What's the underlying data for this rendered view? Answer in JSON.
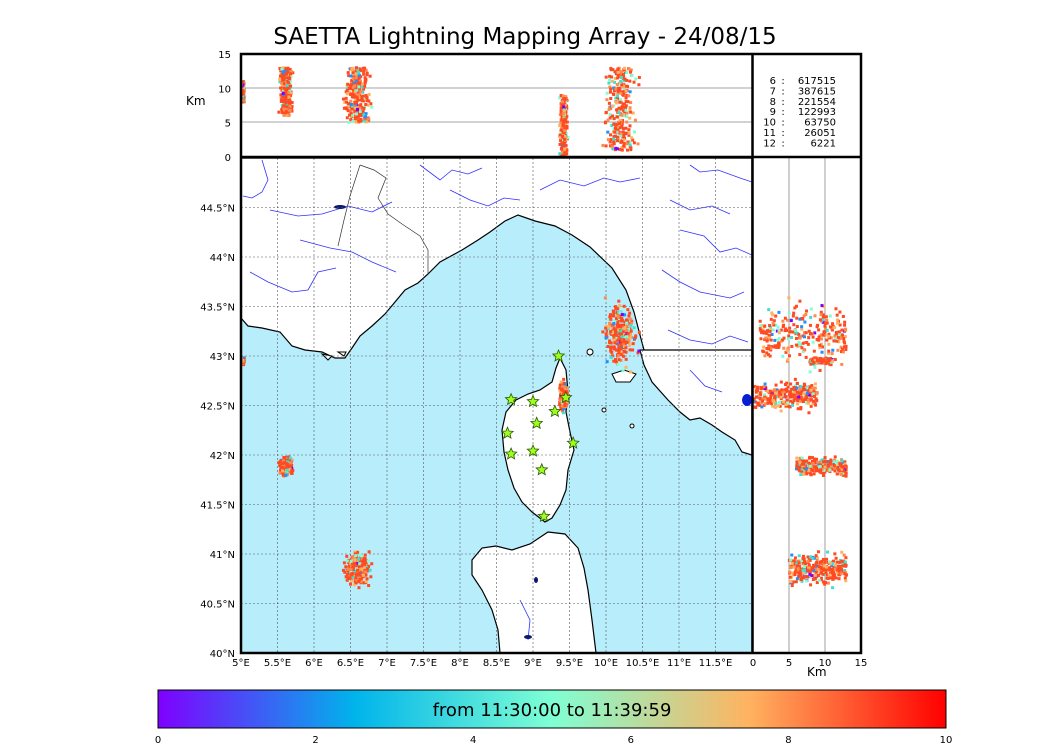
{
  "title": "SAETTA Lightning Mapping Array - 24/08/15",
  "altitude_axis": {
    "unit": "Km",
    "ticks": [
      "0",
      "5",
      "10",
      "15"
    ]
  },
  "map": {
    "lon_labels": [
      "5°E",
      "5.5°E",
      "6°E",
      "6.5°E",
      "7°E",
      "7.5°E",
      "8°E",
      "8.5°E",
      "9°E",
      "9.5°E",
      "10°E",
      "10.5°E",
      "11°E",
      "11.5°E"
    ],
    "lat_labels": [
      "40°N",
      "40.5°N",
      "41°N",
      "41.5°N",
      "42°N",
      "42.5°N",
      "43°N",
      "43.5°N",
      "44°N",
      "44.5°N"
    ],
    "sea_color": "#b8eefc",
    "land_color": "#ffffff",
    "river_color": "#3030ff"
  },
  "stats": [
    {
      "key": "6",
      "value": "617515",
      "color": "#000000"
    },
    {
      "key": "7",
      "value": "387615",
      "color": "#ff0000"
    },
    {
      "key": "8",
      "value": "221554",
      "color": "#000000"
    },
    {
      "key": "9",
      "value": "122993",
      "color": "#000000"
    },
    {
      "key": "10",
      "value": "63750",
      "color": "#000000"
    },
    {
      "key": "11",
      "value": "26051",
      "color": "#000000"
    },
    {
      "key": "12",
      "value": "6221",
      "color": "#000000"
    }
  ],
  "colorbar": {
    "caption": "from 11:30:00 to 11:39:59",
    "ticks": [
      "0",
      "2",
      "4",
      "6",
      "8",
      "10"
    ],
    "colors": [
      "#7f00ff",
      "#00b4eb",
      "#7fffd4",
      "#ffb360",
      "#ff0000"
    ]
  },
  "stations": [
    {
      "lon": 9.35,
      "lat": 43.0
    },
    {
      "lon": 8.7,
      "lat": 42.56
    },
    {
      "lon": 9.0,
      "lat": 42.54
    },
    {
      "lon": 9.45,
      "lat": 42.58
    },
    {
      "lon": 9.3,
      "lat": 42.44
    },
    {
      "lon": 9.05,
      "lat": 42.32
    },
    {
      "lon": 8.65,
      "lat": 42.22
    },
    {
      "lon": 9.55,
      "lat": 42.12
    },
    {
      "lon": 8.7,
      "lat": 42.01
    },
    {
      "lon": 9.0,
      "lat": 42.04
    },
    {
      "lon": 9.12,
      "lat": 41.85
    },
    {
      "lon": 9.15,
      "lat": 41.38
    }
  ],
  "storm_cells": [
    {
      "lon": 10.2,
      "lat": 43.2,
      "rlon": 0.35,
      "rlat": 0.55,
      "alt_min": 1,
      "alt_max": 13
    },
    {
      "lon": 9.42,
      "lat": 42.6,
      "rlon": 0.09,
      "rlat": 0.25,
      "alt_min": 0,
      "alt_max": 9
    },
    {
      "lon": 5.62,
      "lat": 41.88,
      "rlon": 0.15,
      "rlat": 0.16,
      "alt_min": 6,
      "alt_max": 13
    },
    {
      "lon": 6.6,
      "lat": 40.85,
      "rlon": 0.3,
      "rlat": 0.28,
      "alt_min": 5,
      "alt_max": 13
    },
    {
      "lon": 5.02,
      "lat": 42.95,
      "rlon": 0.04,
      "rlat": 0.05,
      "alt_min": 8,
      "alt_max": 11
    }
  ]
}
